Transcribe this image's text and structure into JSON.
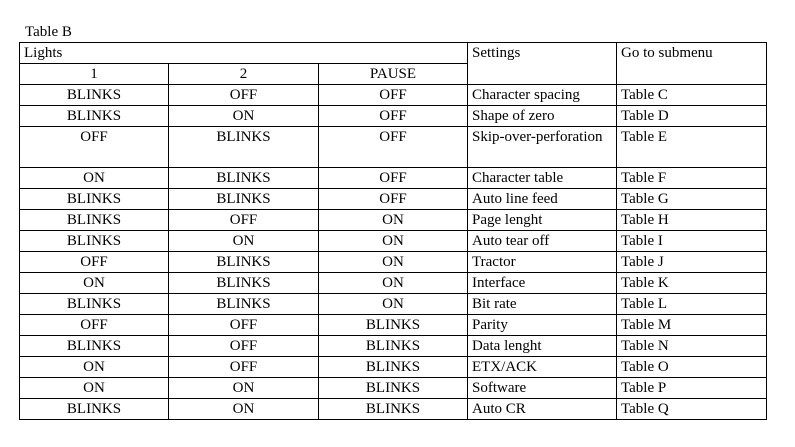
{
  "caption": "Table B",
  "headers": {
    "lights": "Lights",
    "light1": "1",
    "light2": "2",
    "pause": "PAUSE",
    "settings": "Settings",
    "submenu": "Go to submenu"
  },
  "rows": [
    {
      "l1": "BLINKS",
      "l2": "OFF",
      "pause": "OFF",
      "setting": "Character spacing",
      "submenu": "Table C"
    },
    {
      "l1": "BLINKS",
      "l2": "ON",
      "pause": "OFF",
      "setting": "Shape of zero",
      "submenu": "Table D"
    },
    {
      "l1": "OFF",
      "l2": "BLINKS",
      "pause": "OFF",
      "setting": "Skip-over-perforation",
      "submenu": "Table E"
    },
    {
      "l1": "ON",
      "l2": "BLINKS",
      "pause": "OFF",
      "setting": "Character table",
      "submenu": "Table F"
    },
    {
      "l1": "BLINKS",
      "l2": "BLINKS",
      "pause": "OFF",
      "setting": "Auto line feed",
      "submenu": "Table G"
    },
    {
      "l1": "BLINKS",
      "l2": "OFF",
      "pause": "ON",
      "setting": "Page lenght",
      "submenu": "Table H"
    },
    {
      "l1": "BLINKS",
      "l2": "ON",
      "pause": "ON",
      "setting": "Auto tear off",
      "submenu": "Table I"
    },
    {
      "l1": "OFF",
      "l2": "BLINKS",
      "pause": "ON",
      "setting": "Tractor",
      "submenu": "Table J"
    },
    {
      "l1": "ON",
      "l2": "BLINKS",
      "pause": "ON",
      "setting": "Interface",
      "submenu": "Table K"
    },
    {
      "l1": "BLINKS",
      "l2": "BLINKS",
      "pause": "ON",
      "setting": "Bit rate",
      "submenu": "Table L"
    },
    {
      "l1": "OFF",
      "l2": "OFF",
      "pause": "BLINKS",
      "setting": "Parity",
      "submenu": "Table M"
    },
    {
      "l1": "BLINKS",
      "l2": "OFF",
      "pause": "BLINKS",
      "setting": "Data lenght",
      "submenu": "Table N"
    },
    {
      "l1": "ON",
      "l2": "OFF",
      "pause": "BLINKS",
      "setting": "ETX/ACK",
      "submenu": "Table O"
    },
    {
      "l1": "ON",
      "l2": "ON",
      "pause": "BLINKS",
      "setting": "Software",
      "submenu": "Table P"
    },
    {
      "l1": "BLINKS",
      "l2": "ON",
      "pause": "BLINKS",
      "setting": "Auto CR",
      "submenu": "Table Q"
    }
  ]
}
